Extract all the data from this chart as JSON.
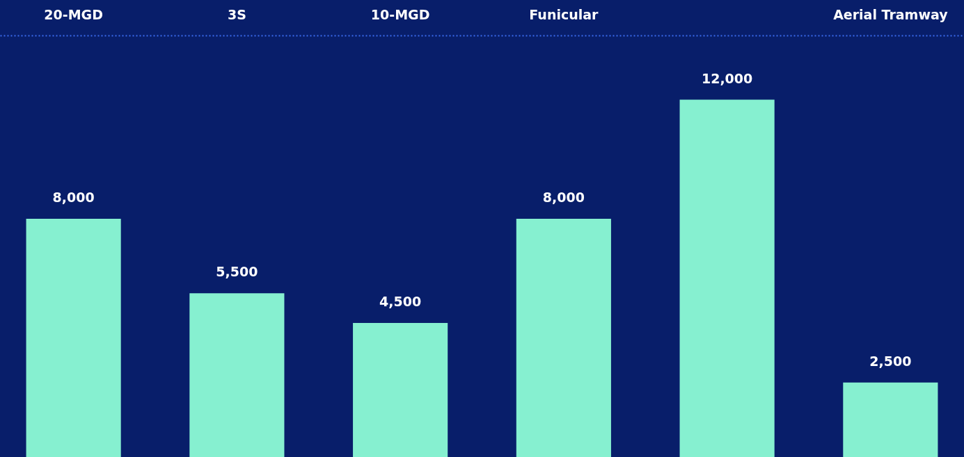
{
  "chart_data": {
    "type": "bar",
    "categories": [
      "20-MGD",
      "3S",
      "10-MGD",
      "Funicular",
      null,
      "Aerial Tramway"
    ],
    "values": [
      8000,
      5500,
      4500,
      8000,
      12000,
      2500
    ],
    "color": "#86f0d0",
    "value_labels": [
      "8,000",
      "5,500",
      "4,500",
      "8,000",
      "12,000",
      "2,500"
    ]
  }
}
